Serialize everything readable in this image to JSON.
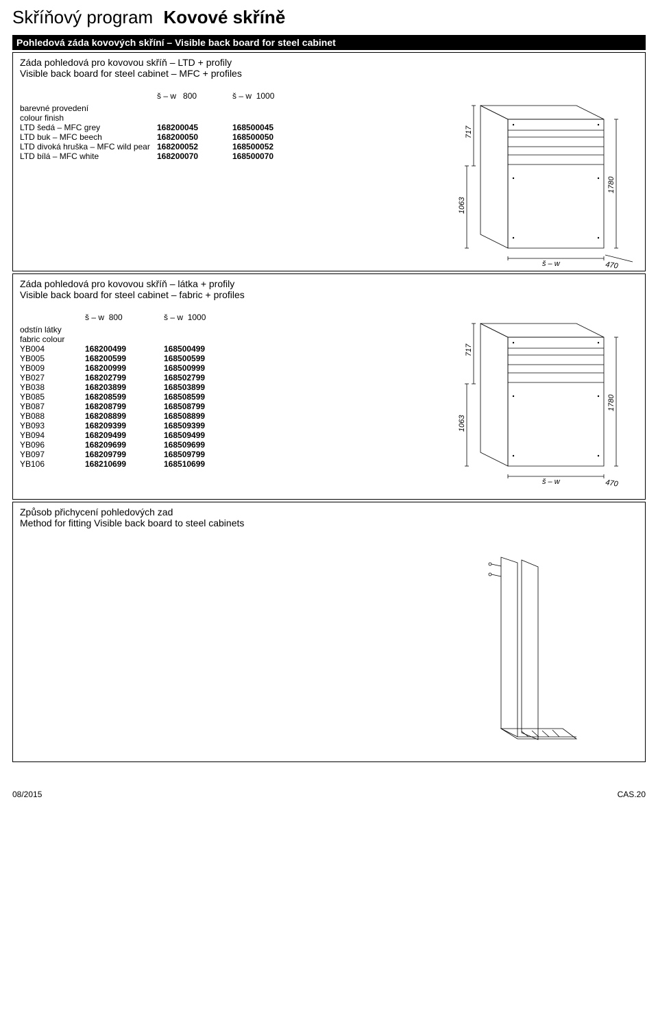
{
  "title": {
    "a": "Skříňový program",
    "b": "Kovové skříně"
  },
  "sectionBar": "Pohledová záda kovových skříní – Visible back board for steel cabinet",
  "block1": {
    "descCz": "Záda pohledová pro kovovou skříň – LTD + profily",
    "descEn": "Visible back board for steel cabinet – MFC + profiles",
    "colHeadPrefix": "š – w",
    "col1": "800",
    "col2": "1000",
    "groupCz": "barevné provedení",
    "groupEn": "colour finish",
    "rows": [
      {
        "label": "LTD šedá – MFC grey",
        "a": "168200045",
        "b": "168500045"
      },
      {
        "label": "LTD buk – MFC beech",
        "a": "168200050",
        "b": "168500050"
      },
      {
        "label": "LTD divoká hruška – MFC wild pear",
        "a": "168200052",
        "b": "168500052"
      },
      {
        "label": "LTD bílá – MFC white",
        "a": "168200070",
        "b": "168500070"
      }
    ],
    "diagram": {
      "d717": "717",
      "d1063": "1063",
      "d1780": "1780",
      "dsw": "š – w",
      "d470": "470"
    }
  },
  "block2": {
    "descCz": "Záda pohledová pro kovovou skříň – látka + profily",
    "descEn": "Visible back board for steel cabinet – fabric + profiles",
    "colHeadPrefix": "š – w",
    "col1": "800",
    "col2": "1000",
    "groupCz": "odstín látky",
    "groupEn": "fabric colour",
    "rows": [
      {
        "label": "YB004",
        "a": "168200499",
        "b": "168500499"
      },
      {
        "label": "YB005",
        "a": "168200599",
        "b": "168500599"
      },
      {
        "label": "YB009",
        "a": "168200999",
        "b": "168500999"
      },
      {
        "label": "YB027",
        "a": "168202799",
        "b": "168502799"
      },
      {
        "label": "YB038",
        "a": "168203899",
        "b": "168503899"
      },
      {
        "label": "YB085",
        "a": "168208599",
        "b": "168508599"
      },
      {
        "label": "YB087",
        "a": "168208799",
        "b": "168508799"
      },
      {
        "label": "YB088",
        "a": "168208899",
        "b": "168508899"
      },
      {
        "label": "YB093",
        "a": "168209399",
        "b": "168509399"
      },
      {
        "label": "YB094",
        "a": "168209499",
        "b": "168509499"
      },
      {
        "label": "YB096",
        "a": "168209699",
        "b": "168509699"
      },
      {
        "label": "YB097",
        "a": "168209799",
        "b": "168509799"
      },
      {
        "label": "YB106",
        "a": "168210699",
        "b": "168510699"
      }
    ],
    "diagram": {
      "d717": "717",
      "d1063": "1063",
      "d1780": "1780",
      "dsw": "š – w",
      "d470": "470"
    }
  },
  "block3": {
    "descCz": "Způsob přichycení pohledových zad",
    "descEn": "Method for fitting Visible back board to steel cabinets"
  },
  "footer": {
    "left": "08/2015",
    "right": "CAS.20"
  },
  "style": {
    "diagramStroke": "#000000",
    "diagramStrokeWidth": 0.8,
    "dimensionLineStroke": "#000000",
    "background": "#ffffff"
  }
}
